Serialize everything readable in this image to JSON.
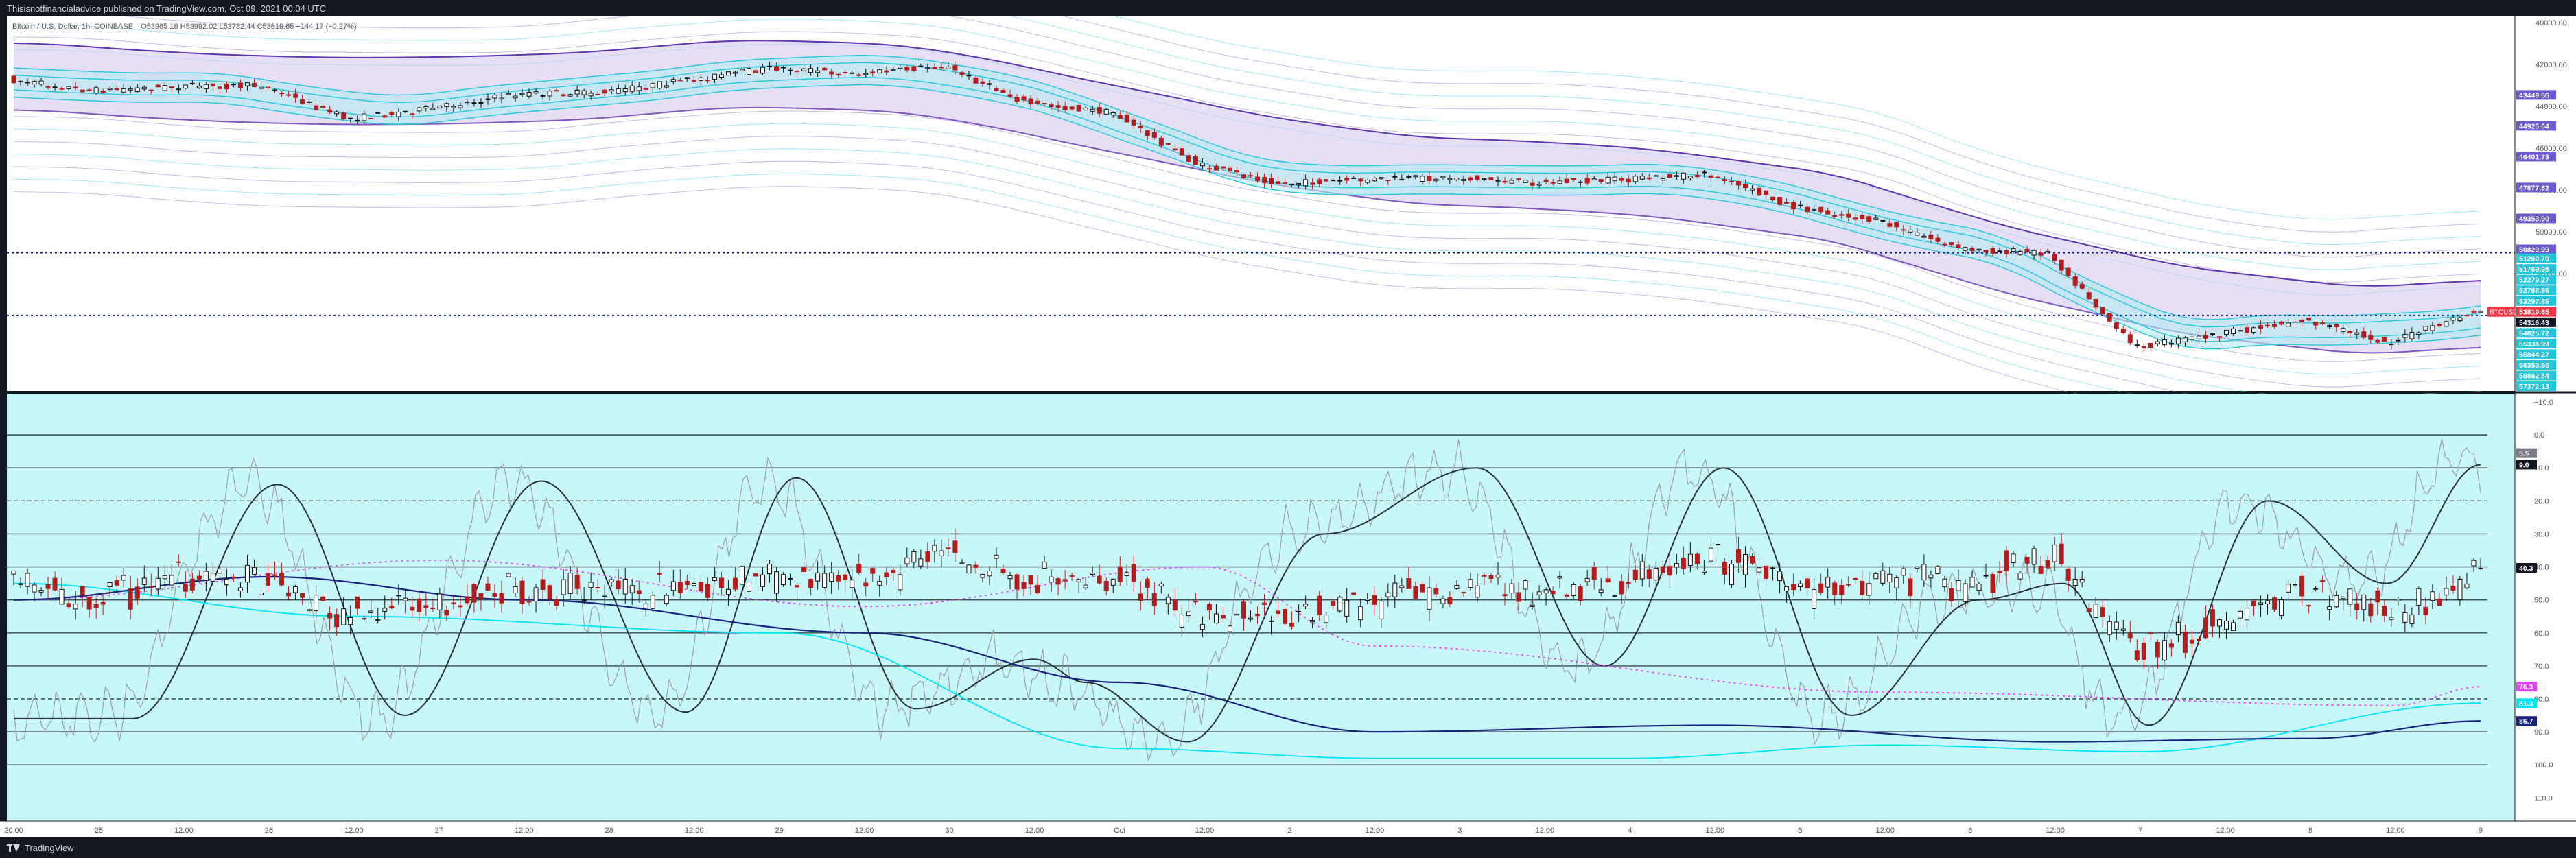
{
  "header": {
    "publisher_line": "Thisisnotfinancialadvice published on TradingView.com, Oct 09, 2021 00:04 UTC"
  },
  "footer": {
    "brand": "TradingView"
  },
  "colors": {
    "price_bg": "#ffffff",
    "osc_bg": "#c8f7f9",
    "bull": "#111111",
    "bear": "#b71c1c",
    "purple": "#6a5acd",
    "cyan": "#26c6da",
    "dark_navy": "#1a237e",
    "magenta": "#e040fb"
  },
  "chart_data": [
    {
      "type": "candlestick",
      "title": "Bitcoin / U.S. Dollar, 1h, COINBASE",
      "ohlc_readout": "O53965.18 H53992.02 L53782.44 C53819.65 −144.17 (−0.27%)",
      "y_scale": "inverted",
      "ylim": [
        57600,
        39700
      ],
      "y_ticks": [
        40000,
        42000,
        44000,
        46000,
        48000,
        50000,
        52000
      ],
      "x_categories": [
        "24 20:00",
        "25",
        "12:00",
        "26",
        "12:00",
        "27",
        "12:00",
        "28",
        "12:00",
        "29",
        "12:00",
        "30",
        "12:00",
        "Oct",
        "12:00",
        "2",
        "12:00",
        "3",
        "12:00",
        "4",
        "12:00",
        "5",
        "12:00",
        "6",
        "12:00",
        "7",
        "12:00",
        "8",
        "12:00",
        "9"
      ],
      "x_labels": [
        "20:00",
        "25",
        "12:00",
        "26",
        "12:00",
        "27",
        "12:00",
        "28",
        "12:00",
        "29",
        "12:00",
        "30",
        "12:00",
        "Oct",
        "12:00",
        "2",
        "12:00",
        "3",
        "12:00",
        "4",
        "12:00",
        "5",
        "12:00",
        "6",
        "12:00",
        "7",
        "12:00",
        "8",
        "12:00",
        "9"
      ],
      "close_path": [
        [
          "24 20:00",
          42700
        ],
        [
          "25",
          43250
        ],
        [
          "25 12:00",
          43050
        ],
        [
          "26",
          43000
        ],
        [
          "26 12:00",
          44600
        ],
        [
          "27",
          44100
        ],
        [
          "27 12:00",
          43400
        ],
        [
          "28",
          43350
        ],
        [
          "28 12:00",
          42750
        ],
        [
          "29",
          42150
        ],
        [
          "29 12:00",
          42450
        ],
        [
          "30",
          42050
        ],
        [
          "30 12:00",
          43850
        ],
        [
          "Oct",
          44300
        ],
        [
          "Oct 12:00",
          46800
        ],
        [
          "2",
          47700
        ],
        [
          "2 12:00",
          47500
        ],
        [
          "3",
          47400
        ],
        [
          "3 12:00",
          47650
        ],
        [
          "4",
          47500
        ],
        [
          "4 12:00",
          47250
        ],
        [
          "5",
          48800
        ],
        [
          "5 12:00",
          49500
        ],
        [
          "6",
          50850
        ],
        [
          "6 12:00",
          51000
        ],
        [
          "7",
          55500
        ],
        [
          "7 12:00",
          54900
        ],
        [
          "8",
          54200
        ],
        [
          "8 12:00",
          55300
        ],
        [
          "9",
          53819.65
        ]
      ],
      "price_labels": [
        {
          "value": 43449.56,
          "text": "43449.56",
          "color": "#6a5acd"
        },
        {
          "value": 44925.64,
          "text": "44925.64",
          "color": "#6a5acd"
        },
        {
          "value": 46401.73,
          "text": "46401.73",
          "color": "#6a5acd"
        },
        {
          "value": 47877.82,
          "text": "47877.82",
          "color": "#6a5acd"
        },
        {
          "value": 49353.9,
          "text": "49353.90",
          "color": "#6a5acd"
        },
        {
          "value": 50829.99,
          "text": "50829.99",
          "color": "#6a5acd"
        },
        {
          "value": 51260.7,
          "text": "51260.70",
          "color": "#26c6da"
        },
        {
          "value": 51769.98,
          "text": "51769.98",
          "color": "#26c6da"
        },
        {
          "value": 52279.27,
          "text": "52279.27",
          "color": "#26c6da"
        },
        {
          "value": 52788.56,
          "text": "52788.56",
          "color": "#26c6da"
        },
        {
          "value": 53297.85,
          "text": "53297.85",
          "color": "#26c6da"
        },
        {
          "value": 53819.65,
          "text": "53819.65",
          "color": "#f23645",
          "label": "BTCUSD"
        },
        {
          "value": 54316.43,
          "text": "54316.43",
          "color": "#131722"
        },
        {
          "value": 54825.72,
          "text": "54825.72",
          "color": "#26c6da"
        },
        {
          "value": 55334.99,
          "text": "55334.99",
          "color": "#26c6da"
        },
        {
          "value": 55844.27,
          "text": "55844.27",
          "color": "#26c6da"
        },
        {
          "value": 56353.56,
          "text": "56353.56",
          "color": "#26c6da"
        },
        {
          "value": 56862.84,
          "text": "56862.84",
          "color": "#26c6da"
        },
        {
          "value": 57372.13,
          "text": "57372.13",
          "color": "#26c6da"
        }
      ],
      "horizontal_levels": [
        51000,
        53990
      ],
      "price_tick_labels": [
        "40000.00",
        "42000.00",
        "44000.00",
        "46000.00",
        "48000.00",
        "50000.00",
        "52000.00"
      ]
    },
    {
      "type": "line",
      "title": "",
      "y_scale": "inverted",
      "ylim": [
        -12.5,
        117
      ],
      "y_ticks": [
        -10,
        0,
        10,
        20,
        30,
        40,
        50,
        60,
        70,
        80,
        90,
        100,
        110
      ],
      "y_tick_labels": [
        "−10.0",
        "0.0",
        "10.0",
        "20.0",
        "30.0",
        "40.0",
        "50.0",
        "60.0",
        "70.0",
        "80.0",
        "90.0",
        "100.0",
        "110.0"
      ],
      "solid_levels": [
        0,
        10,
        30,
        40,
        50,
        60,
        70,
        90,
        100
      ],
      "dashed_levels": [
        20,
        80
      ],
      "value_labels": [
        {
          "value": 5.5,
          "text": "5.5",
          "color": "#787b86"
        },
        {
          "value": 9.0,
          "text": "9.0",
          "color": "#131722"
        },
        {
          "value": 40.3,
          "text": "40.3",
          "color": "#131722"
        },
        {
          "value": 76.3,
          "text": "76.3",
          "color": "#e040fb"
        },
        {
          "value": 81.3,
          "text": "81.3",
          "color": "#00e5ff"
        },
        {
          "value": 86.7,
          "text": "86.7",
          "color": "#1a237e"
        }
      ],
      "series": [
        {
          "values_at_x": [
            [
              0,
              50
            ],
            [
              5,
              38
            ],
            [
              10,
              52
            ],
            [
              14,
              40
            ],
            [
              16,
              64
            ],
            [
              22,
              78
            ],
            [
              28,
              82
            ],
            [
              29,
              76.3
            ]
          ]
        },
        {
          "values_at_x": [
            [
              0,
              45
            ],
            [
              4,
              55
            ],
            [
              9,
              60
            ],
            [
              13,
              95
            ],
            [
              16,
              98
            ],
            [
              19,
              98
            ],
            [
              22,
              94
            ],
            [
              25,
              96
            ],
            [
              29,
              81.3
            ]
          ]
        },
        {
          "values_at_x": [
            [
              0,
              50
            ],
            [
              3,
              43
            ],
            [
              6,
              50
            ],
            [
              10,
              60
            ],
            [
              13,
              75
            ],
            [
              16,
              90
            ],
            [
              20,
              88
            ],
            [
              24,
              93
            ],
            [
              27,
              92
            ],
            [
              29,
              86.7
            ]
          ]
        }
      ],
      "oscillator_peaks": [
        {
          "x": 1.4,
          "value": 86
        },
        {
          "x": 3.1,
          "value": 15
        },
        {
          "x": 4.6,
          "value": 85
        },
        {
          "x": 6.2,
          "value": 14
        },
        {
          "x": 7.9,
          "value": 84
        },
        {
          "x": 9.2,
          "value": 13
        },
        {
          "x": 10.6,
          "value": 83
        },
        {
          "x": 12.0,
          "value": 68
        },
        {
          "x": 12.6,
          "value": 75
        },
        {
          "x": 13.8,
          "value": 93
        },
        {
          "x": 15.4,
          "value": 30
        },
        {
          "x": 17.2,
          "value": 10
        },
        {
          "x": 18.7,
          "value": 70
        },
        {
          "x": 20.1,
          "value": 10
        },
        {
          "x": 21.6,
          "value": 85
        },
        {
          "x": 23.1,
          "value": 50
        },
        {
          "x": 24.1,
          "value": 45
        },
        {
          "x": 25.1,
          "value": 88
        },
        {
          "x": 26.5,
          "value": 20
        },
        {
          "x": 27.9,
          "value": 45
        },
        {
          "x": 29.0,
          "value": 9
        }
      ]
    }
  ]
}
